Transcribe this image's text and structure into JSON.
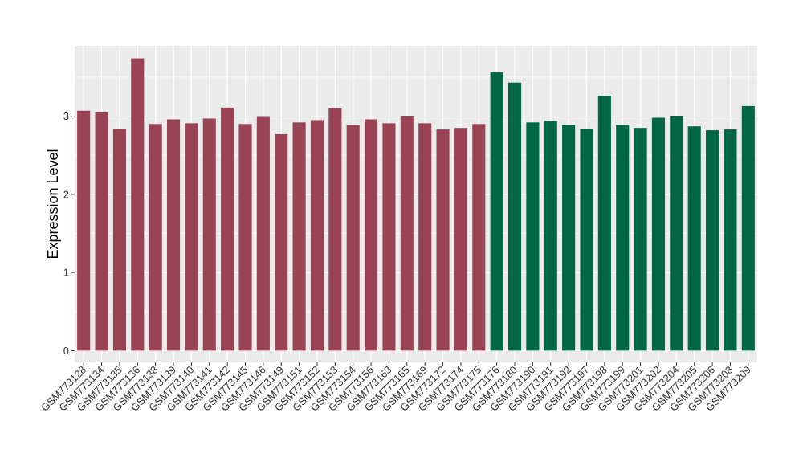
{
  "chart_data": {
    "type": "bar",
    "title": "",
    "xlabel": "",
    "ylabel": "Expression Level",
    "ylim": [
      -0.15,
      3.9
    ],
    "yticks": [
      0,
      1,
      2,
      3
    ],
    "grid": true,
    "legend": "none",
    "background_color": "#ebebeb",
    "grid_color": "#ffffff",
    "categories": [
      "GSM773128",
      "GSM773134",
      "GSM773135",
      "GSM773136",
      "GSM773138",
      "GSM773139",
      "GSM773140",
      "GSM773141",
      "GSM773142",
      "GSM773145",
      "GSM773146",
      "GSM773149",
      "GSM773151",
      "GSM773152",
      "GSM773153",
      "GSM773154",
      "GSM773156",
      "GSM773163",
      "GSM773165",
      "GSM773169",
      "GSM773172",
      "GSM773174",
      "GSM773175",
      "GSM773176",
      "GSM773180",
      "GSM773190",
      "GSM773191",
      "GSM773192",
      "GSM773197",
      "GSM773198",
      "GSM773199",
      "GSM773201",
      "GSM773202",
      "GSM773204",
      "GSM773205",
      "GSM773206",
      "GSM773208",
      "GSM773209"
    ],
    "values": [
      3.07,
      3.05,
      2.84,
      3.74,
      2.9,
      2.96,
      2.91,
      2.97,
      3.11,
      2.9,
      2.99,
      2.77,
      2.92,
      2.95,
      3.1,
      2.89,
      2.96,
      2.91,
      3.0,
      2.91,
      2.83,
      2.85,
      2.9,
      3.56,
      3.43,
      2.92,
      2.94,
      2.89,
      2.84,
      3.26,
      2.89,
      2.85,
      2.98,
      3.0,
      2.87,
      2.82,
      2.83,
      3.13
    ],
    "groups": [
      {
        "color": "#994455",
        "count": 23
      },
      {
        "color": "#006644",
        "count": 15
      }
    ]
  }
}
